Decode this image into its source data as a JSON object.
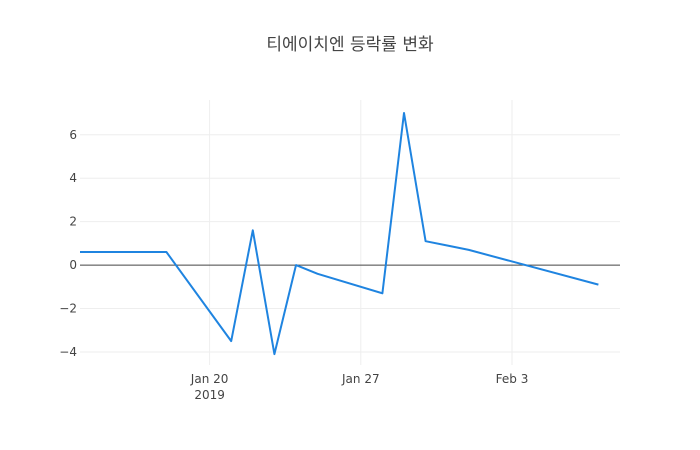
{
  "chart_data": {
    "type": "line",
    "title": "티에이치엔 등락률 변화",
    "xlabel": "",
    "ylabel": "",
    "x": [
      "2019-01-14",
      "2019-01-15",
      "2019-01-16",
      "2019-01-17",
      "2019-01-18",
      "2019-01-21",
      "2019-01-22",
      "2019-01-23",
      "2019-01-24",
      "2019-01-25",
      "2019-01-28",
      "2019-01-29",
      "2019-01-30",
      "2019-01-31",
      "2019-02-01",
      "2019-02-07"
    ],
    "series": [
      {
        "name": "",
        "color": "#1f84e0",
        "values": [
          0.6,
          0.6,
          0.6,
          0.6,
          0.6,
          -3.5,
          1.6,
          -4.1,
          0.0,
          -0.4,
          -1.3,
          7.0,
          1.1,
          0.9,
          0.7,
          -0.9
        ]
      }
    ],
    "x_range": [
      "2019-01-14",
      "2019-02-08"
    ],
    "ylim": [
      -4.6,
      7.6
    ],
    "x_ticks": [
      {
        "date": "2019-01-20",
        "label": "Jan 20",
        "sublabel": "2019"
      },
      {
        "date": "2019-01-27",
        "label": "Jan 27",
        "sublabel": ""
      },
      {
        "date": "2019-02-03",
        "label": "Feb 3",
        "sublabel": ""
      }
    ],
    "y_ticks": [
      {
        "value": 6,
        "label": "6"
      },
      {
        "value": 4,
        "label": "4"
      },
      {
        "value": 2,
        "label": "2"
      },
      {
        "value": 0,
        "label": "0"
      },
      {
        "value": -2,
        "label": "−2"
      },
      {
        "value": -4,
        "label": "−4"
      }
    ],
    "grid": true,
    "legend": "none"
  }
}
